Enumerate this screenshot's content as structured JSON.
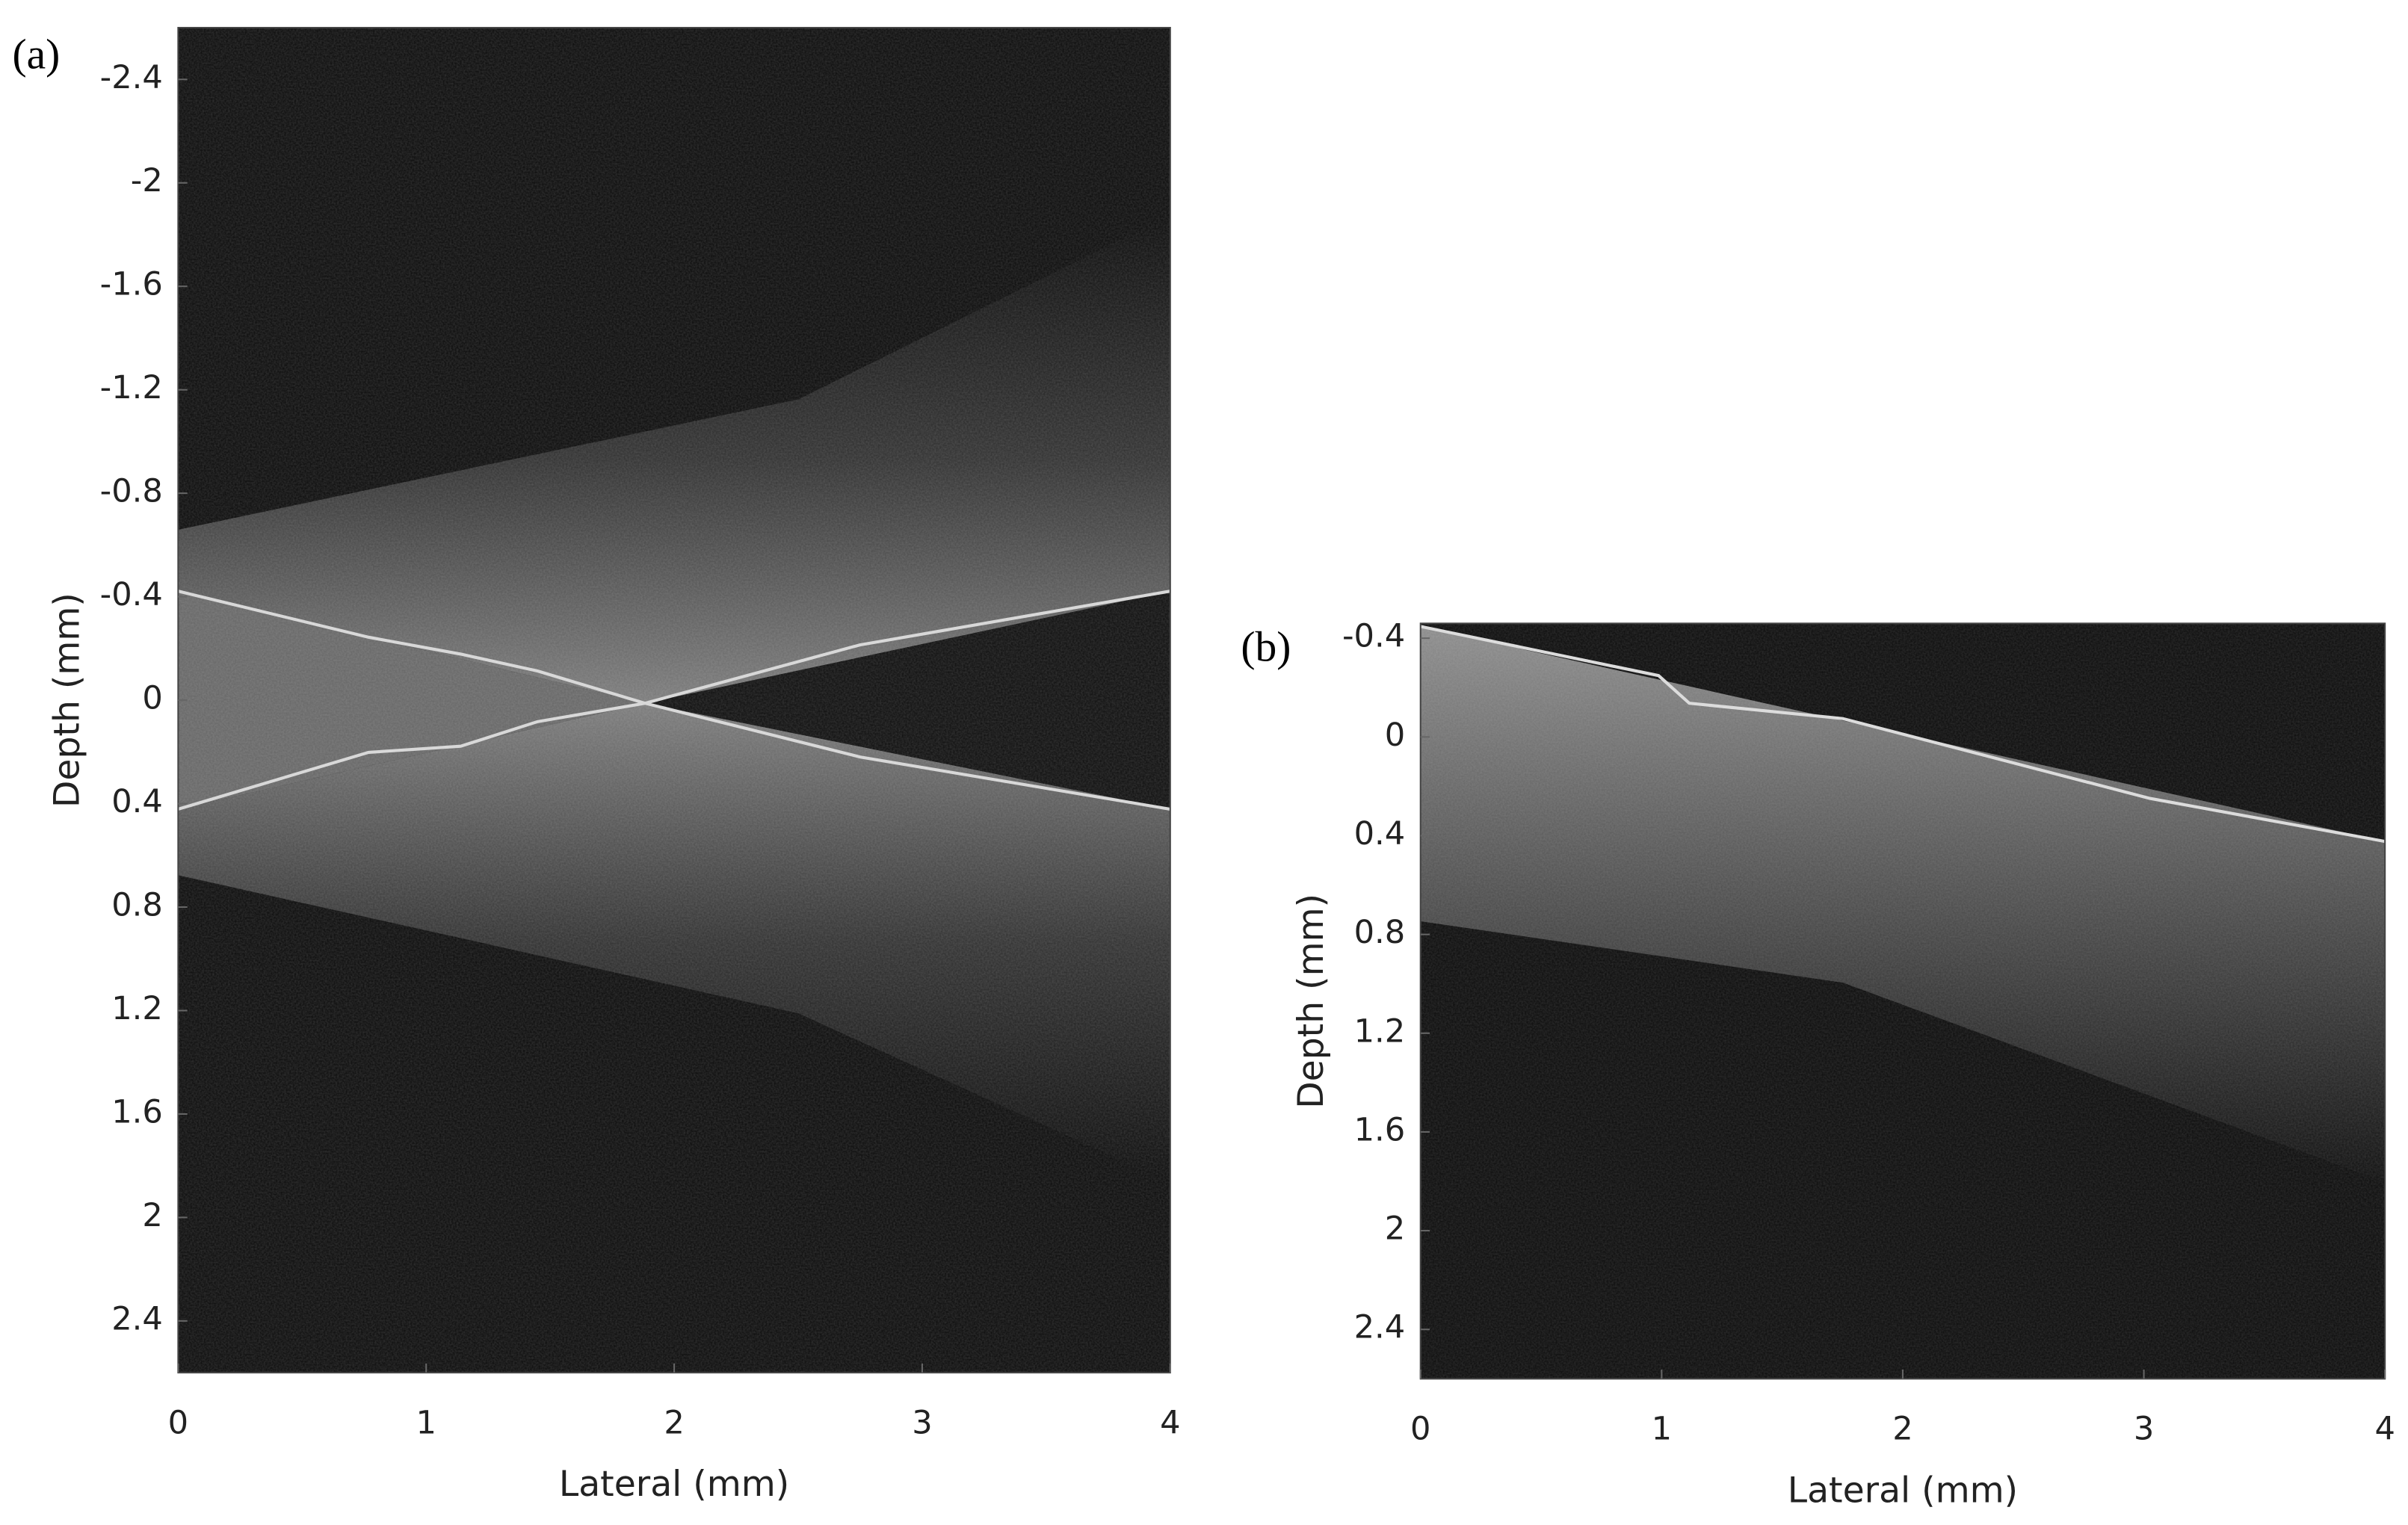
{
  "chart_data": [
    {
      "type": "image",
      "panel_label": "(a)",
      "xlabel": "Lateral (mm)",
      "ylabel": "Depth (mm)",
      "xlim": [
        0,
        4
      ],
      "xticks": [
        0,
        1,
        2,
        3,
        4
      ],
      "ylim": [
        -2.6,
        2.6
      ],
      "yticks": [
        -2.4,
        -2,
        -1.6,
        -1.2,
        -0.8,
        -0.4,
        0,
        0.4,
        0.8,
        1.2,
        1.6,
        2,
        2.4
      ],
      "y_inverted": true
    },
    {
      "type": "image",
      "panel_label": "(b)",
      "xlabel": "Lateral (mm)",
      "ylabel": "Depth (mm)",
      "xlim": [
        0,
        4
      ],
      "xticks": [
        0,
        1,
        2,
        3,
        4
      ],
      "ylim": [
        -0.46,
        2.6
      ],
      "yticks": [
        -0.4,
        0,
        0.4,
        0.8,
        1.2,
        1.6,
        2,
        2.4
      ],
      "y_inverted": true
    }
  ]
}
